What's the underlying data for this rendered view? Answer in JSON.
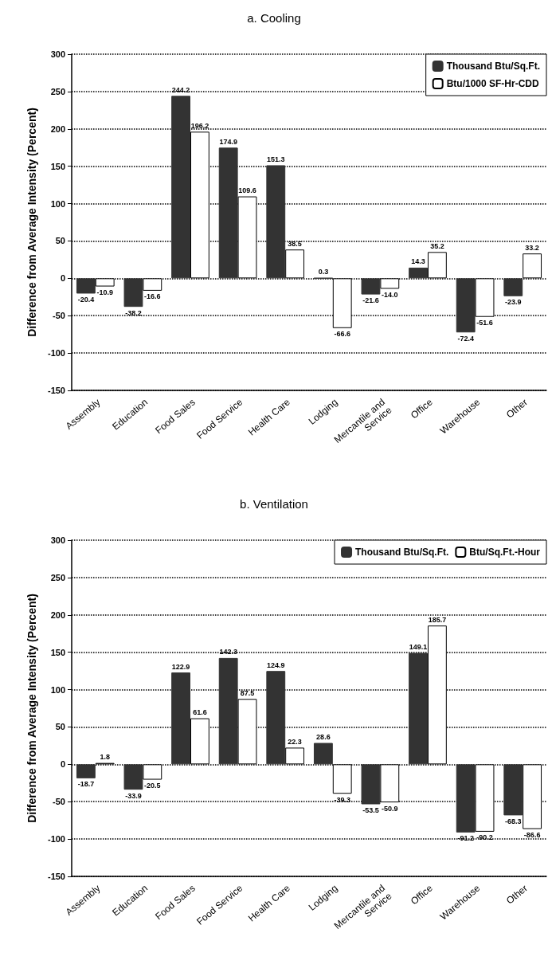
{
  "chart_data": [
    {
      "type": "bar",
      "title": "a. Cooling",
      "ylabel": "Difference from Average Intensity (Percent)",
      "categories": [
        "Assembly",
        "Education",
        "Food Sales",
        "Food Service",
        "Health Care",
        "Lodging",
        "Mercantile and Service",
        "Office",
        "Warehouse",
        "Other"
      ],
      "series": [
        {
          "name": "Thousand Btu/Sq.Ft.",
          "color": "#333333",
          "values": [
            -20.4,
            -38.2,
            244.2,
            174.9,
            151.3,
            0.3,
            -21.6,
            14.3,
            -72.4,
            -23.9
          ],
          "value_labels": [
            "-20.4",
            "-38.2",
            "244.2",
            "174.9",
            "151.3",
            "0.3",
            "-21.6",
            "14.3",
            "-72.4",
            "-23.9"
          ]
        },
        {
          "name": "Btu/1000 SF-Hr-CDD",
          "color": "#ffffff",
          "values": [
            -10.9,
            -16.6,
            196.2,
            109.6,
            38.5,
            -66.6,
            -14.0,
            35.2,
            -51.6,
            33.2
          ],
          "value_labels": [
            "-10.9",
            "-16.6",
            "196.2",
            "109.6",
            "38.5",
            "-66.6",
            "-14.0",
            "35.2",
            "-51.6",
            "33.2"
          ]
        }
      ],
      "ylim": [
        -150,
        300
      ],
      "yticks": [
        -150,
        -100,
        -50,
        0,
        50,
        100,
        150,
        200,
        250,
        300
      ],
      "grid": "y",
      "legend": "top right"
    },
    {
      "type": "bar",
      "title": "b. Ventilation",
      "ylabel": "Difference from Average Intensity (Percent)",
      "categories": [
        "Assembly",
        "Education",
        "Food Sales",
        "Food Service",
        "Health Care",
        "Lodging",
        "Mercantile and Service",
        "Office",
        "Warehouse",
        "Other"
      ],
      "series": [
        {
          "name": "Thousand Btu/Sq.Ft.",
          "color": "#333333",
          "values": [
            -18.7,
            -33.9,
            122.9,
            142.3,
            124.9,
            28.6,
            -53.5,
            149.1,
            -91.2,
            -68.3
          ],
          "value_labels": [
            "-18.7",
            "-33.9",
            "122.9",
            "142.3",
            "124.9",
            "28.6",
            "-53.5",
            "149.1",
            "-91.2",
            "-68.3"
          ]
        },
        {
          "name": "Btu/Sq.Ft.-Hour",
          "color": "#ffffff",
          "values": [
            1.8,
            -20.5,
            61.6,
            87.5,
            22.3,
            -39.3,
            -50.9,
            185.7,
            -90.2,
            -86.6
          ],
          "value_labels": [
            "1.8",
            "-20.5",
            "61.6",
            "87.5",
            "22.3",
            "-39.3",
            "-50.9",
            "185.7",
            "-90.2",
            "-86.6"
          ]
        }
      ],
      "ylim": [
        -150,
        300
      ],
      "yticks": [
        -150,
        -100,
        -50,
        0,
        50,
        100,
        150,
        200,
        250,
        300
      ],
      "grid": "y",
      "legend": "top right"
    }
  ]
}
